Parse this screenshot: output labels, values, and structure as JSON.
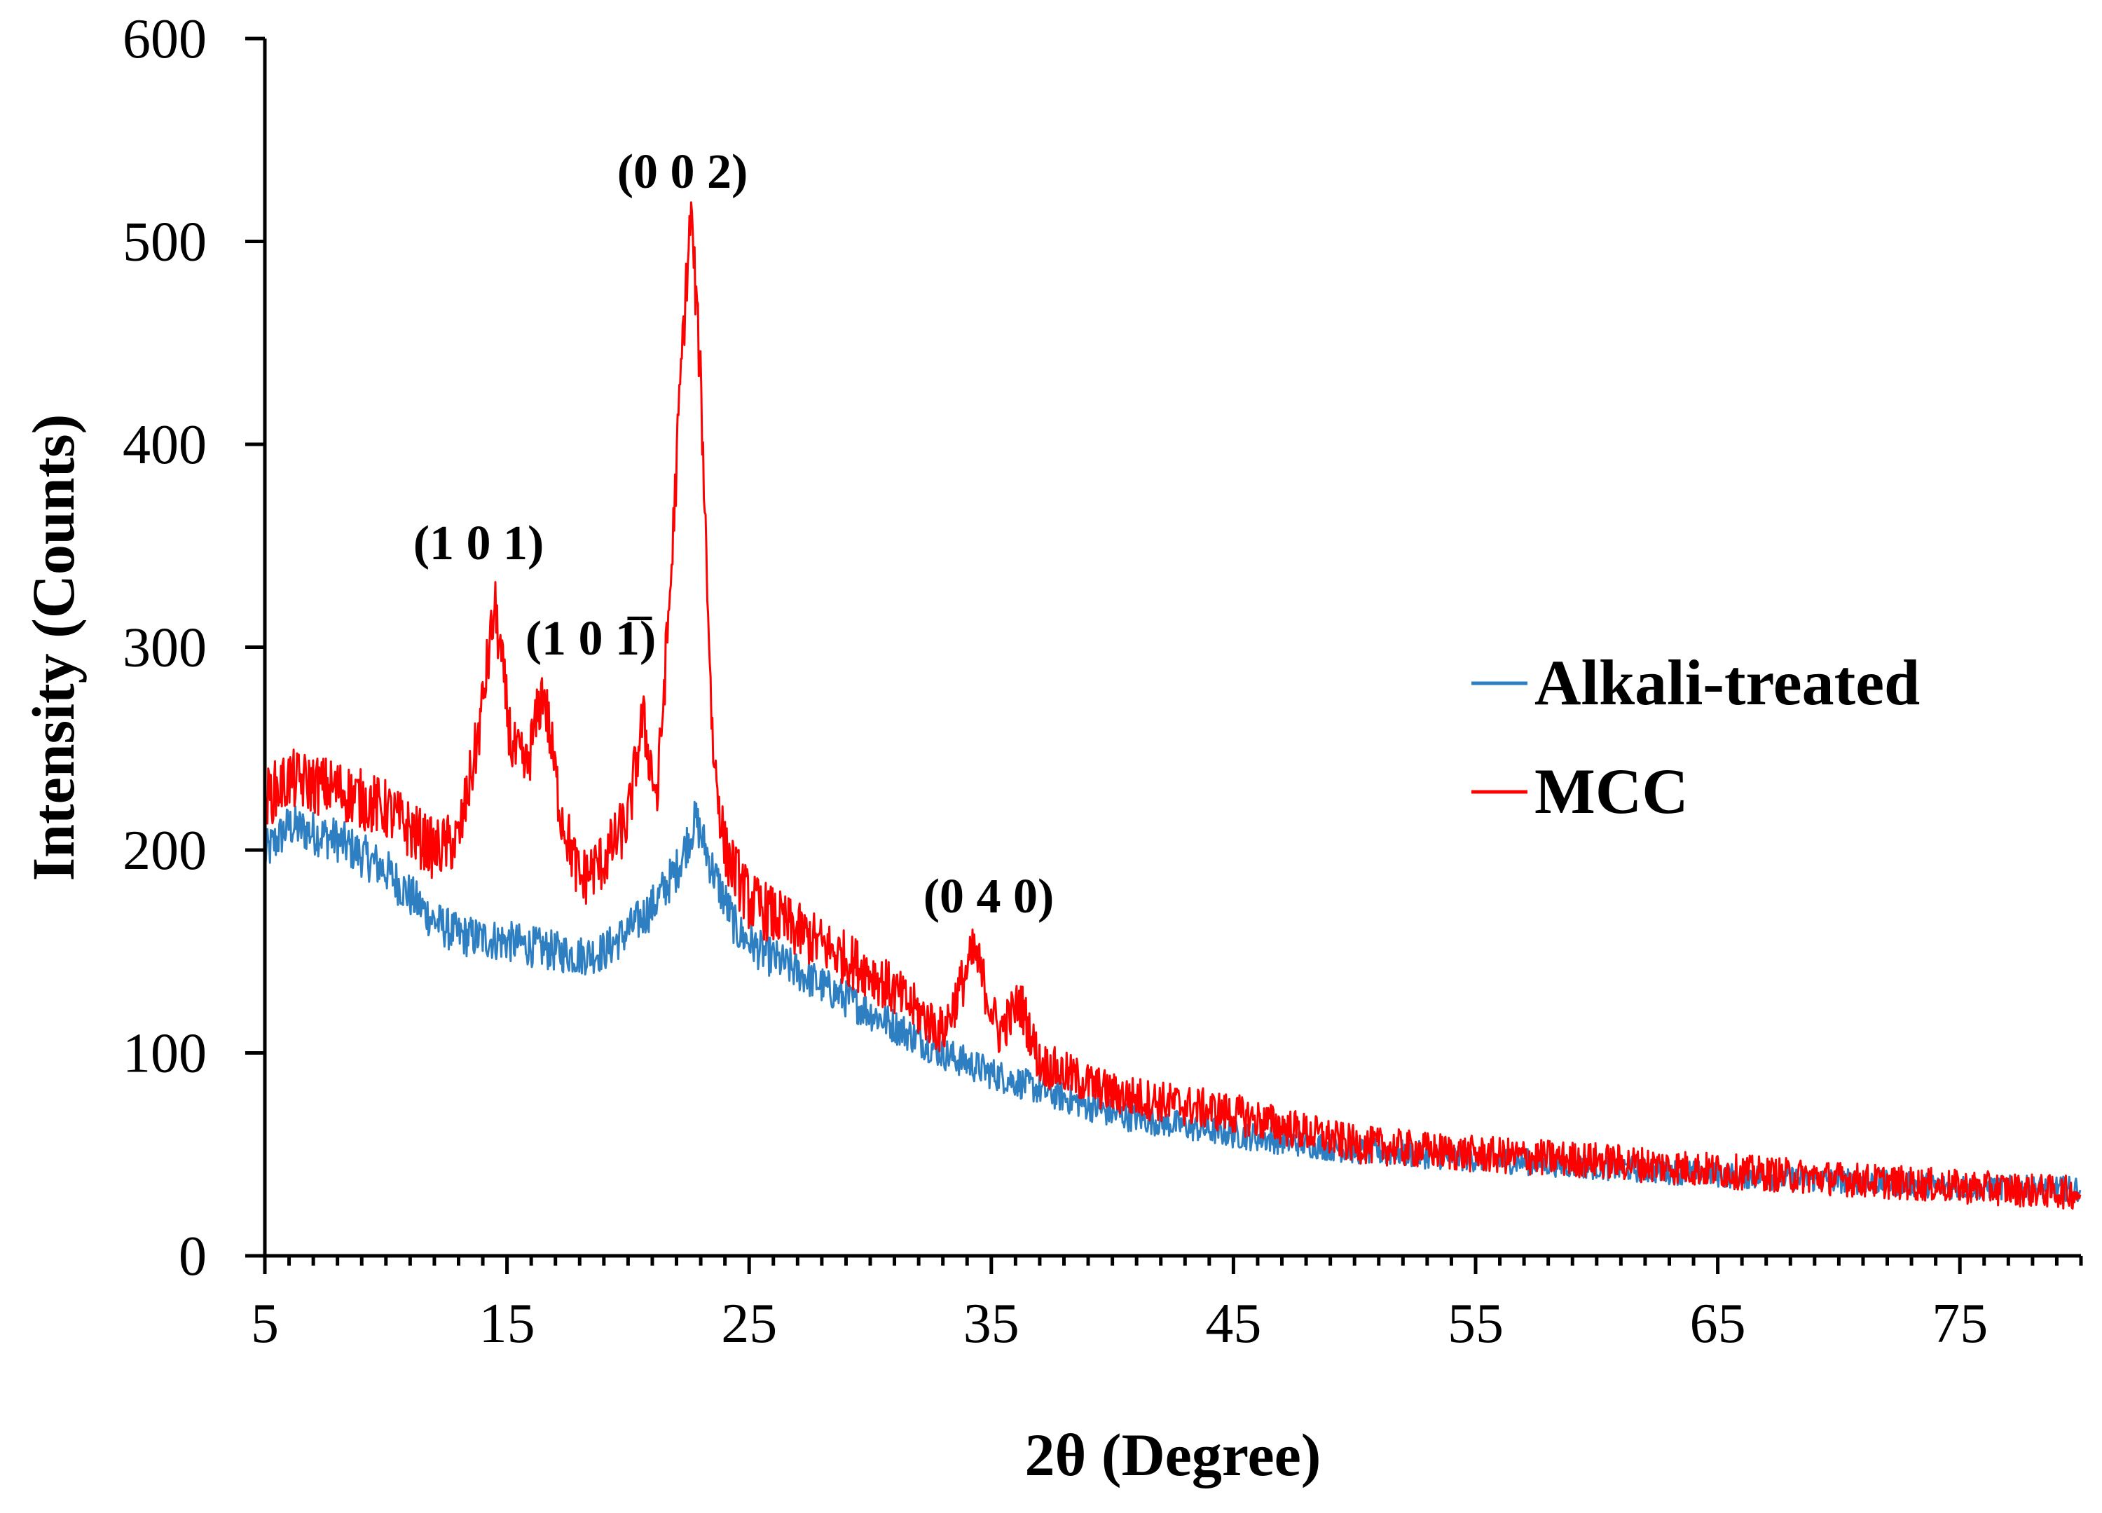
{
  "chart_data": {
    "type": "line",
    "title": "",
    "xlabel": "2θ (Degree)",
    "ylabel": "Intensity (Counts)",
    "xlim": [
      5,
      80
    ],
    "ylim": [
      0,
      600
    ],
    "x_ticks": [
      5,
      15,
      25,
      35,
      45,
      55,
      65,
      75
    ],
    "y_ticks": [
      0,
      100,
      200,
      300,
      400,
      500,
      600
    ],
    "legend_position": "right",
    "series": [
      {
        "name": "Alkali-treated",
        "color": "#2E7FC2",
        "noise": 11,
        "x": [
          5,
          6,
          8,
          10,
          12,
          13,
          15,
          17,
          18,
          19,
          20,
          21,
          22,
          22.8,
          23.5,
          24.5,
          25.5,
          27,
          30,
          33,
          35,
          40,
          45,
          50,
          55,
          60,
          65,
          70,
          75,
          80
        ],
        "values": [
          198,
          212,
          205,
          190,
          165,
          158,
          155,
          150,
          148,
          150,
          160,
          172,
          190,
          215,
          190,
          160,
          150,
          140,
          120,
          100,
          90,
          70,
          60,
          52,
          48,
          44,
          40,
          37,
          34,
          33
        ]
      },
      {
        "name": "MCC",
        "color": "#FF0000",
        "noise": 15,
        "x": [
          5,
          6,
          8,
          10,
          12,
          13,
          13.8,
          14.5,
          15.2,
          15.8,
          16.5,
          17.2,
          18,
          19,
          20,
          20.6,
          21.2,
          21.8,
          22.2,
          22.6,
          23,
          23.5,
          24,
          25,
          27,
          30,
          32,
          33,
          34.3,
          35.3,
          36.2,
          37,
          40,
          45,
          50,
          55,
          60,
          65,
          70,
          75,
          80
        ],
        "values": [
          225,
          235,
          230,
          220,
          200,
          205,
          255,
          320,
          250,
          240,
          280,
          220,
          185,
          195,
          215,
          265,
          225,
          340,
          440,
          515,
          430,
          250,
          200,
          175,
          160,
          140,
          120,
          110,
          150,
          110,
          125,
          95,
          80,
          70,
          55,
          50,
          47,
          42,
          38,
          34,
          31
        ]
      }
    ],
    "annotations": [
      {
        "text": "(1 0 1)",
        "x": 14.5,
        "y": 335
      },
      {
        "text": "(1 0 1̅)",
        "x": 18.0,
        "y": 288
      },
      {
        "text": "(0 0 2)",
        "x": 22.6,
        "y": 530
      },
      {
        "text": "(0 4 0)",
        "x": 34.5,
        "y": 165
      }
    ]
  }
}
